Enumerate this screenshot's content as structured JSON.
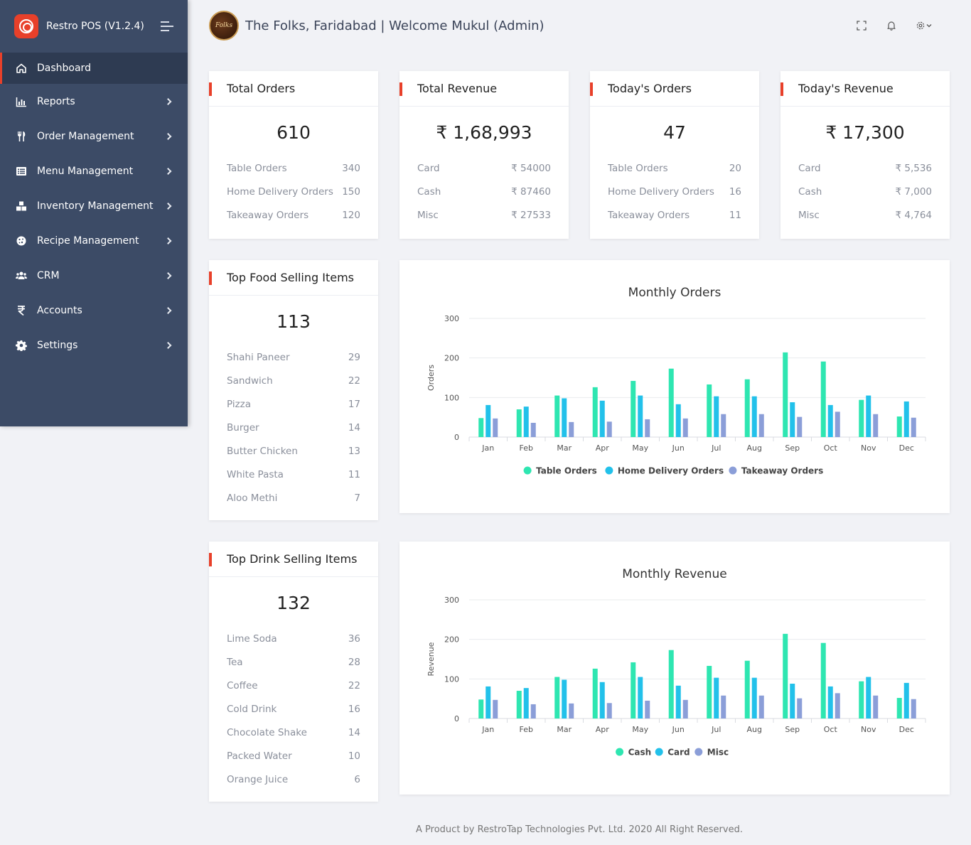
{
  "app": {
    "title": "Restro POS (V1.2.4)"
  },
  "header": {
    "title": "The Folks, Faridabad | Welcome Mukul (Admin)",
    "logo_text": "Folks"
  },
  "sidebar": {
    "items": [
      {
        "label": "Dashboard",
        "icon": "home-icon",
        "active": true
      },
      {
        "label": "Reports",
        "icon": "bar-chart-icon"
      },
      {
        "label": "Order Management",
        "icon": "utensils-icon"
      },
      {
        "label": "Menu Management",
        "icon": "list-icon"
      },
      {
        "label": "Inventory Management",
        "icon": "boxes-icon"
      },
      {
        "label": "Recipe Management",
        "icon": "cookie-icon"
      },
      {
        "label": "CRM",
        "icon": "users-icon"
      },
      {
        "label": "Accounts",
        "icon": "rupee-icon"
      },
      {
        "label": "Settings",
        "icon": "gear-icon"
      }
    ]
  },
  "stats": {
    "total_orders": {
      "title": "Total Orders",
      "value": "610",
      "rows": [
        {
          "label": "Table Orders",
          "value": "340"
        },
        {
          "label": "Home Delivery Orders",
          "value": "150"
        },
        {
          "label": "Takeaway Orders",
          "value": "120"
        }
      ]
    },
    "total_revenue": {
      "title": "Total Revenue",
      "value": "₹ 1,68,993",
      "rows": [
        {
          "label": "Card",
          "value": "₹ 54000"
        },
        {
          "label": "Cash",
          "value": "₹ 87460"
        },
        {
          "label": "Misc",
          "value": "₹ 27533"
        }
      ]
    },
    "todays_orders": {
      "title": "Today's Orders",
      "value": "47",
      "rows": [
        {
          "label": "Table Orders",
          "value": "20"
        },
        {
          "label": "Home Delivery Orders",
          "value": "16"
        },
        {
          "label": "Takeaway Orders",
          "value": "11"
        }
      ]
    },
    "todays_revenue": {
      "title": "Today's Revenue",
      "value": "₹ 17,300",
      "rows": [
        {
          "label": "Card",
          "value": "₹ 5,536"
        },
        {
          "label": "Cash",
          "value": "₹ 7,000"
        },
        {
          "label": "Misc",
          "value": "₹ 4,764"
        }
      ]
    }
  },
  "top_food": {
    "title": "Top Food Selling Items",
    "value": "113",
    "rows": [
      {
        "label": "Shahi Paneer",
        "value": "29"
      },
      {
        "label": "Sandwich",
        "value": "22"
      },
      {
        "label": "Pizza",
        "value": "17"
      },
      {
        "label": "Burger",
        "value": "14"
      },
      {
        "label": "Butter Chicken",
        "value": "13"
      },
      {
        "label": "White Pasta",
        "value": "11"
      },
      {
        "label": "Aloo Methi",
        "value": "7"
      }
    ]
  },
  "top_drink": {
    "title": "Top Drink Selling Items",
    "value": "132",
    "rows": [
      {
        "label": "Lime Soda",
        "value": "36"
      },
      {
        "label": "Tea",
        "value": "28"
      },
      {
        "label": "Coffee",
        "value": "22"
      },
      {
        "label": "Cold Drink",
        "value": "16"
      },
      {
        "label": "Chocolate Shake",
        "value": "14"
      },
      {
        "label": "Packed Water",
        "value": "10"
      },
      {
        "label": "Orange Juice",
        "value": "6"
      }
    ]
  },
  "colors": {
    "accent": "#e8402a",
    "sidebar": "#3c4b66",
    "series1": "#2ee6b1",
    "series2": "#22c1ea",
    "series3": "#8b9ed8"
  },
  "chart_data": [
    {
      "type": "bar",
      "title": "Monthly Orders",
      "ylabel": "Orders",
      "xlabel": "",
      "ylim": [
        0,
        300
      ],
      "yticks": [
        0,
        100,
        200,
        300
      ],
      "categories": [
        "Jan",
        "Feb",
        "Mar",
        "Apr",
        "May",
        "Jun",
        "Jul",
        "Aug",
        "Sep",
        "Oct",
        "Nov",
        "Dec"
      ],
      "series": [
        {
          "name": "Table Orders",
          "color": "#2ee6b1",
          "values": [
            48,
            70,
            105,
            126,
            142,
            173,
            133,
            146,
            214,
            191,
            94,
            52
          ]
        },
        {
          "name": "Home Delivery Orders",
          "color": "#22c1ea",
          "values": [
            81,
            77,
            98,
            92,
            105,
            83,
            103,
            103,
            88,
            81,
            105,
            90
          ]
        },
        {
          "name": "Takeaway Orders",
          "color": "#8b9ed8",
          "values": [
            47,
            36,
            38,
            39,
            45,
            47,
            58,
            58,
            51,
            64,
            58,
            49
          ]
        }
      ],
      "legend": "bottom",
      "grid": true
    },
    {
      "type": "bar",
      "title": "Monthly Revenue",
      "ylabel": "Revenue",
      "xlabel": "",
      "ylim": [
        0,
        300
      ],
      "yticks": [
        0,
        100,
        200,
        300
      ],
      "categories": [
        "Jan",
        "Feb",
        "Mar",
        "Apr",
        "May",
        "Jun",
        "Jul",
        "Aug",
        "Sep",
        "Oct",
        "Nov",
        "Dec"
      ],
      "series": [
        {
          "name": "Cash",
          "color": "#2ee6b1",
          "values": [
            48,
            70,
            105,
            126,
            142,
            173,
            133,
            146,
            214,
            191,
            94,
            52
          ]
        },
        {
          "name": "Card",
          "color": "#22c1ea",
          "values": [
            81,
            77,
            98,
            92,
            105,
            83,
            103,
            103,
            88,
            81,
            105,
            90
          ]
        },
        {
          "name": "Misc",
          "color": "#8b9ed8",
          "values": [
            47,
            36,
            38,
            39,
            45,
            47,
            58,
            58,
            51,
            64,
            58,
            49
          ]
        }
      ],
      "legend": "bottom",
      "grid": true
    }
  ],
  "footer": {
    "text": "A Product by RestroTap Technologies Pvt. Ltd. 2020 All Right Reserved."
  }
}
